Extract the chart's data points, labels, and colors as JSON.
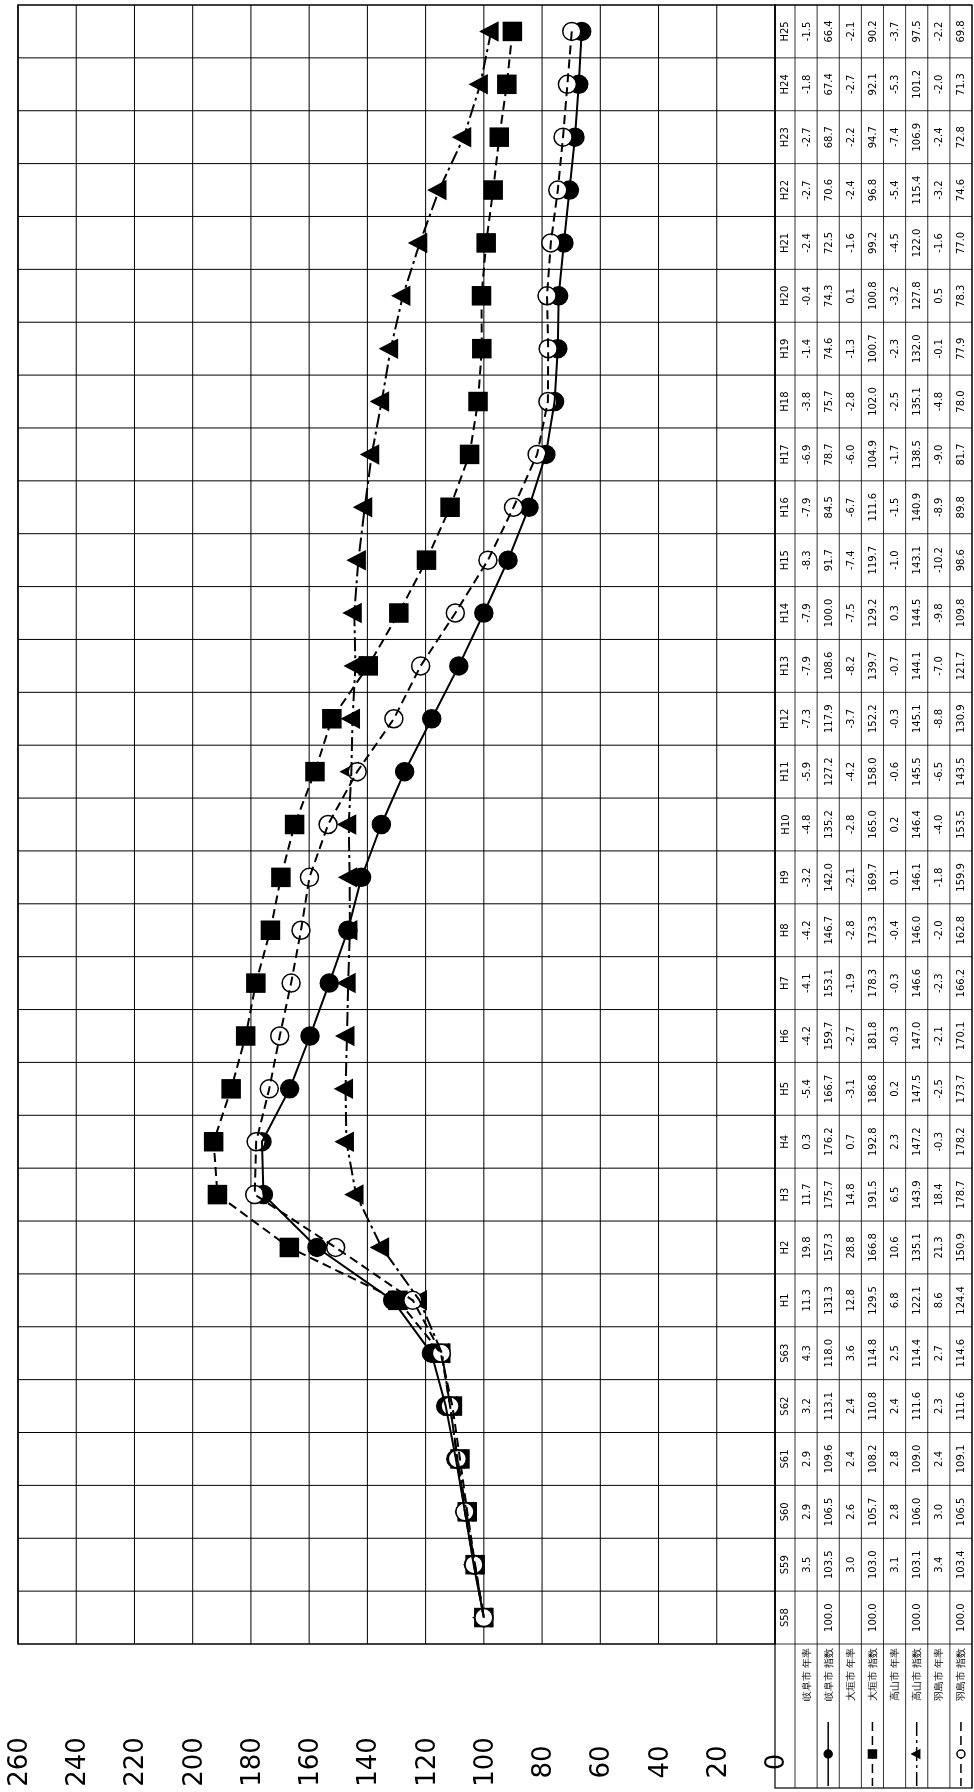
{
  "chart_data": [
    {
      "type": "line",
      "orientation": "horizontal",
      "categories": [
        "H25",
        "H24",
        "H23",
        "H22",
        "H21",
        "H20",
        "H19",
        "H18",
        "H17",
        "H16",
        "H15",
        "H14",
        "H13",
        "H12",
        "H11",
        "H10",
        "H9",
        "H8",
        "H7",
        "H6",
        "H5",
        "H4",
        "H3",
        "H2",
        "H1",
        "S63",
        "S62",
        "S61",
        "S60",
        "S59",
        "S58"
      ],
      "xlim": [
        260,
        0
      ],
      "xticks": [
        260,
        240,
        220,
        200,
        180,
        160,
        140,
        120,
        100,
        80,
        60,
        40,
        20,
        0
      ],
      "grid": true,
      "series": [
        {
          "name": "岐阜市 指数",
          "color": "#000000",
          "marker": "circle",
          "line_style": "solid",
          "values": [
            66.4,
            67.4,
            68.7,
            70.6,
            72.5,
            74.3,
            74.6,
            75.7,
            78.7,
            84.5,
            91.7,
            100.0,
            108.6,
            117.9,
            127.2,
            135.2,
            142.0,
            146.7,
            153.1,
            159.7,
            166.7,
            176.2,
            175.7,
            157.3,
            131.3,
            118.0,
            113.1,
            109.6,
            106.5,
            103.5,
            100.0
          ],
          "value_labels": [
            "66.4",
            "67.4",
            "68.7",
            "70.6",
            "72.5",
            "74.3",
            "74.6",
            "75.7",
            "78.7",
            "84.5",
            "91.7",
            "100.0",
            "108.6",
            "117.9",
            "127.2",
            "135.2",
            "142.0",
            "146.7",
            "153.1",
            "159.7",
            "166.7",
            "176.2",
            "175.7",
            "157.3",
            "131.3",
            "118.0",
            "113.1",
            "109.6",
            "106.5",
            "103.5",
            "100.0"
          ]
        },
        {
          "name": "大垣市 指数",
          "color": "#000000",
          "marker": "square",
          "line_style": "dashed",
          "values": [
            90.2,
            92.1,
            94.7,
            96.8,
            99.2,
            100.8,
            100.7,
            102.0,
            104.9,
            111.6,
            119.7,
            129.2,
            139.7,
            152.2,
            158.0,
            165.0,
            169.7,
            173.3,
            178.3,
            181.8,
            186.8,
            192.8,
            191.5,
            166.8,
            129.5,
            114.8,
            110.8,
            108.2,
            105.7,
            103.0,
            100.0
          ],
          "value_labels": [
            "90.2",
            "92.1",
            "94.7",
            "96.8",
            "99.2",
            "100.8",
            "100.7",
            "102.0",
            "104.9",
            "111.6",
            "119.7",
            "129.2",
            "139.7",
            "152.2",
            "158.0",
            "165.0",
            "169.7",
            "173.3",
            "178.3",
            "181.8",
            "186.8",
            "192.8",
            "191.5",
            "166.8",
            "129.5",
            "114.8",
            "110.8",
            "108.2",
            "105.7",
            "103.0",
            "100.0"
          ]
        },
        {
          "name": "高山市 指数",
          "color": "#000000",
          "marker": "triangle",
          "line_style": "dashdot",
          "values": [
            97.5,
            101.2,
            106.9,
            115.4,
            122.0,
            127.8,
            132.0,
            135.1,
            138.5,
            140.9,
            143.1,
            144.5,
            144.1,
            145.1,
            145.5,
            146.4,
            146.1,
            146.0,
            146.6,
            147.0,
            147.5,
            147.2,
            143.9,
            135.1,
            122.1,
            114.4,
            111.6,
            109.0,
            106.0,
            103.1,
            100.0
          ],
          "value_labels": [
            "97.5",
            "101.2",
            "106.9",
            "115.4",
            "122.0",
            "127.8",
            "132.0",
            "135.1",
            "138.5",
            "140.9",
            "143.1",
            "144.5",
            "144.1",
            "145.1",
            "145.5",
            "146.4",
            "146.1",
            "146.0",
            "146.6",
            "147.0",
            "147.5",
            "147.2",
            "143.9",
            "135.1",
            "122.1",
            "114.4",
            "111.6",
            "109.0",
            "106.0",
            "103.1",
            "100.0"
          ]
        },
        {
          "name": "羽島市 指数",
          "color": "#000000",
          "marker": "circle_open",
          "line_style": "dashed",
          "values": [
            69.8,
            71.3,
            72.8,
            74.6,
            77.0,
            78.3,
            77.9,
            78.0,
            81.7,
            89.8,
            98.6,
            109.8,
            121.7,
            130.9,
            143.5,
            153.5,
            159.9,
            162.8,
            166.2,
            170.1,
            173.7,
            178.2,
            178.7,
            150.9,
            124.4,
            114.6,
            111.6,
            109.1,
            106.5,
            103.4,
            100.0
          ],
          "value_labels": [
            "69.8",
            "71.3",
            "72.8",
            "74.6",
            "77.0",
            "78.3",
            "77.9",
            "78.0",
            "81.7",
            "89.8",
            "98.6",
            "109.8",
            "121.7",
            "130.9",
            "143.5",
            "153.5",
            "159.9",
            "162.8",
            "166.2",
            "170.1",
            "173.7",
            "178.2",
            "178.7",
            "150.9",
            "124.4",
            "114.6",
            "111.6",
            "109.1",
            "106.5",
            "103.4",
            "100.0"
          ]
        }
      ]
    },
    {
      "type": "other",
      "series": [
        {
          "name": "岐阜市 年率"
        },
        {
          "name": "大垣市 年率"
        },
        {
          "name": "高山市 年率"
        },
        {
          "name": "羽島市 年率"
        }
      ],
      "annotations": [
        "-1.5",
        "-1.8",
        "-2.7",
        "-2.7",
        "-2.4",
        "-0.4",
        "-1.4",
        "-3.8",
        "-6.9",
        "-7.9",
        "-8.3",
        "-7.9",
        "-7.9",
        "-7.3",
        "-5.9",
        "-4.8",
        "-3.2",
        "-4.2",
        "-4.1",
        "-4.2",
        "-5.4",
        "0.3",
        "11.7",
        "19.8",
        "11.3",
        "4.3",
        "3.2",
        "2.9",
        "2.9",
        "3.5",
        "-2.1",
        "-2.7",
        "-2.2",
        "-2.4",
        "-1.6",
        "0.1",
        "-1.3",
        "-2.8",
        "-6.0",
        "-6.7",
        "-7.4",
        "-7.5",
        "-8.2",
        "-3.7",
        "-4.2",
        "-2.8",
        "-2.1",
        "-2.8",
        "-1.9",
        "-2.7",
        "-3.1",
        "0.7",
        "14.8",
        "28.8",
        "12.8",
        "3.6",
        "2.4",
        "2.4",
        "2.6",
        "3.0",
        "-3.7",
        "-5.3",
        "-7.4",
        "-5.4",
        "-4.5",
        "-3.2",
        "-2.3",
        "-2.5",
        "-1.7",
        "-1.5",
        "-1.0",
        "0.3",
        "-0.7",
        "-0.3",
        "-0.6",
        "0.2",
        "0.1",
        "-0.4",
        "-0.3",
        "-0.3",
        "0.2",
        "2.3",
        "6.5",
        "10.6",
        "6.8",
        "2.5",
        "2.4",
        "2.8",
        "2.8",
        "3.1",
        "-2.2",
        "-2.0",
        "-2.4",
        "-3.2",
        "-1.6",
        "0.5",
        "-0.1",
        "-4.8",
        "-9.0",
        "-8.9",
        "-10.2",
        "-9.8",
        "-7.0",
        "-8.8",
        "-6.5",
        "-4.0",
        "-1.8",
        "-2.0",
        "-2.3",
        "-2.1",
        "-2.5",
        "-0.3",
        "18.4",
        "21.3",
        "8.6",
        "2.7",
        "2.3",
        "2.4",
        "3.0",
        "3.4"
      ]
    }
  ]
}
